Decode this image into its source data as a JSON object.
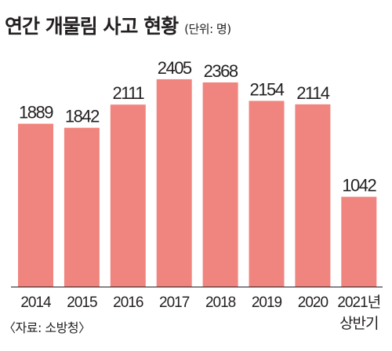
{
  "colors": {
    "bar": "#f0857f",
    "text": "#231f20",
    "baseline": "#231f20"
  },
  "chart_data": {
    "type": "bar",
    "title": "연간 개물림 사고 현황",
    "unit_note": "(단위: 명)",
    "source": "〈자료: 소방청〉",
    "categories": [
      "2014",
      "2015",
      "2016",
      "2017",
      "2018",
      "2019",
      "2020",
      "2021년 상반기"
    ],
    "category_lines": [
      [
        "2014"
      ],
      [
        "2015"
      ],
      [
        "2016"
      ],
      [
        "2017"
      ],
      [
        "2018"
      ],
      [
        "2019"
      ],
      [
        "2020"
      ],
      [
        "2021년",
        "상반기"
      ]
    ],
    "values": [
      1889,
      1842,
      2111,
      2405,
      2368,
      2154,
      2114,
      1042
    ],
    "data_labels": [
      "1889",
      "1842",
      "2111",
      "2405",
      "2368",
      "2154",
      "2114",
      "1042"
    ],
    "ylim": [
      0,
      2650
    ],
    "grid": false,
    "legend": "none"
  }
}
